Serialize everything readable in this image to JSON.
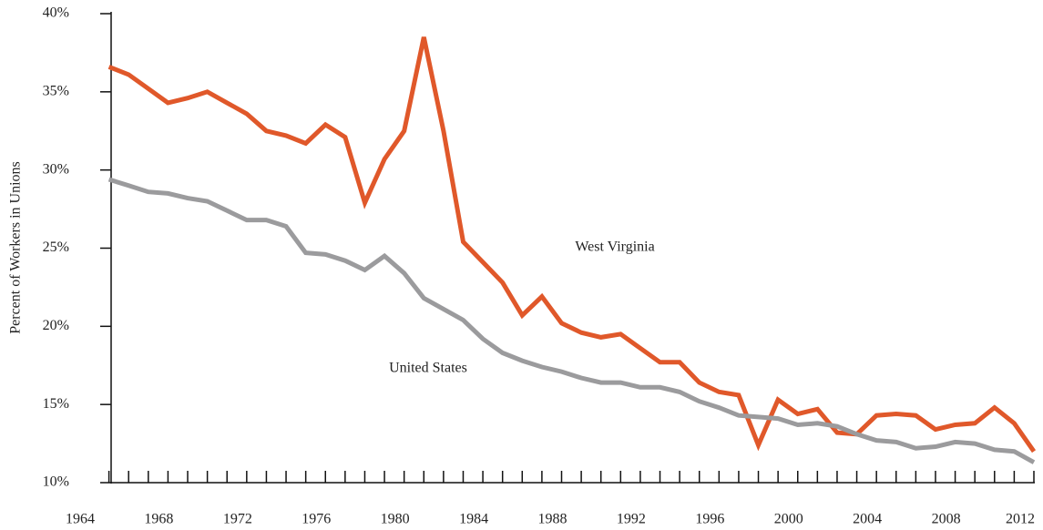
{
  "chart_data": {
    "type": "line",
    "y_label": "Percent of Workers in Unions",
    "x": [
      1965,
      1966,
      1967,
      1968,
      1969,
      1970,
      1971,
      1972,
      1973,
      1974,
      1975,
      1976,
      1977,
      1978,
      1979,
      1980,
      1981,
      1982,
      1983,
      1984,
      1985,
      1986,
      1987,
      1988,
      1989,
      1990,
      1991,
      1992,
      1993,
      1994,
      1995,
      1996,
      1997,
      1998,
      1999,
      2000,
      2001,
      2002,
      2003,
      2004,
      2005,
      2006,
      2007,
      2008,
      2009,
      2010,
      2011,
      2012
    ],
    "series": [
      {
        "name": "West Virginia",
        "color": "#e0582a",
        "values": [
          36.6,
          36.1,
          35.2,
          34.3,
          34.6,
          35.0,
          34.3,
          33.6,
          32.5,
          32.2,
          31.7,
          32.9,
          32.1,
          27.9,
          30.7,
          32.5,
          38.5,
          32.5,
          25.4,
          24.1,
          22.8,
          20.7,
          21.9,
          20.2,
          19.6,
          19.3,
          19.5,
          18.6,
          17.7,
          17.7,
          16.4,
          15.8,
          15.6,
          12.4,
          15.3,
          14.4,
          14.7,
          13.2,
          13.1,
          14.3,
          14.4,
          14.3,
          13.4,
          13.7,
          13.8,
          14.8,
          13.8,
          12.0
        ]
      },
      {
        "name": "United States",
        "color": "#9b9b9d",
        "values": [
          29.4,
          29.0,
          28.6,
          28.5,
          28.2,
          28.0,
          27.4,
          26.8,
          26.8,
          26.4,
          24.7,
          24.6,
          24.2,
          23.6,
          24.5,
          23.4,
          21.8,
          21.1,
          20.4,
          19.2,
          18.3,
          17.8,
          17.4,
          17.1,
          16.7,
          16.4,
          16.4,
          16.1,
          16.1,
          15.8,
          15.2,
          14.8,
          14.3,
          14.2,
          14.1,
          13.7,
          13.8,
          13.6,
          13.1,
          12.7,
          12.6,
          12.2,
          12.3,
          12.6,
          12.5,
          12.1,
          12.0,
          11.3
        ]
      }
    ],
    "xlim": [
      1964,
      2012
    ],
    "xticks": [
      1964,
      1968,
      1972,
      1976,
      1980,
      1984,
      1988,
      1992,
      1996,
      2000,
      2004,
      2008,
      2012
    ],
    "ylim": [
      10,
      40
    ],
    "yticks": [
      {
        "value": 10,
        "label": "10%"
      },
      {
        "value": 15,
        "label": "15%"
      },
      {
        "value": 20,
        "label": "20%"
      },
      {
        "value": 25,
        "label": "25%"
      },
      {
        "value": 30,
        "label": "30%"
      },
      {
        "value": 35,
        "label": "35%"
      },
      {
        "value": 40,
        "label": "40%"
      }
    ]
  }
}
